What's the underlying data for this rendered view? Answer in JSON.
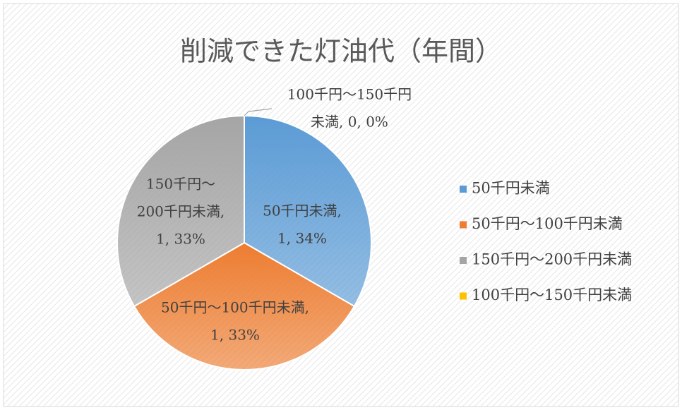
{
  "chart_data": {
    "type": "pie",
    "title": "削減できた灯油代（年間）",
    "categories": [
      "50千円未満",
      "50千円～100千円未満",
      "150千円～200千円未満",
      "100千円～150千円未満"
    ],
    "values": [
      1,
      1,
      1,
      0
    ],
    "value_labels": [
      [
        "50千円未満,",
        "1, 34%"
      ],
      [
        "50千円～100千円未満,",
        "1, 33%"
      ],
      [
        "150千円～",
        "200千円未満,",
        "1, 33%"
      ],
      [
        "100千円～150千円",
        "未満, 0, 0%"
      ]
    ],
    "colors": [
      "#5b9bd5",
      "#ed7d31",
      "#a5a5a5",
      "#ffc000"
    ],
    "legend": "right"
  }
}
